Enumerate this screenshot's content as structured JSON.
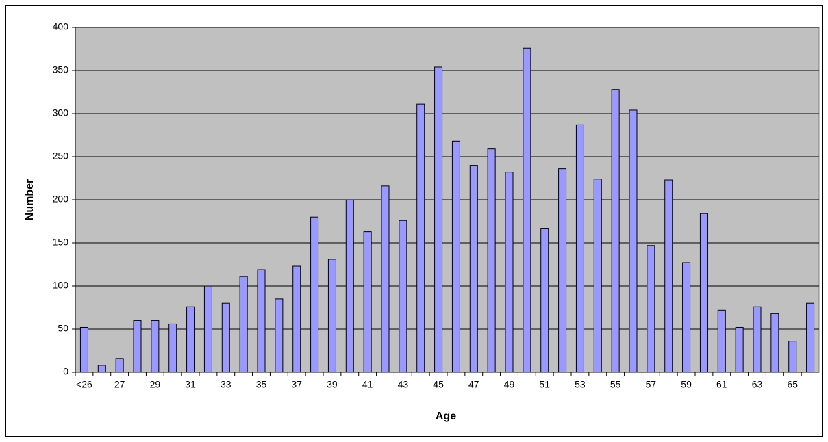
{
  "chart_data": {
    "type": "bar",
    "x_label": "Age",
    "y_label": "Number",
    "categories": [
      "<26",
      null,
      "27",
      null,
      "29",
      null,
      "31",
      null,
      "33",
      null,
      "35",
      null,
      "37",
      null,
      "39",
      null,
      "41",
      null,
      "43",
      null,
      "45",
      null,
      "47",
      null,
      "49",
      null,
      "51",
      null,
      "53",
      null,
      "55",
      null,
      "57",
      null,
      "59",
      null,
      "61",
      null,
      "63",
      null,
      "65",
      null
    ],
    "values": [
      52,
      8,
      16,
      60,
      60,
      56,
      76,
      100,
      80,
      111,
      119,
      85,
      123,
      180,
      131,
      200,
      163,
      216,
      176,
      311,
      354,
      268,
      240,
      259,
      232,
      376,
      167,
      236,
      287,
      224,
      328,
      304,
      147,
      223,
      127,
      184,
      72,
      52,
      76,
      68,
      36,
      80
    ],
    "color": "#9999ff",
    "ylim": [
      0,
      400
    ],
    "yticks": [
      0,
      50,
      100,
      150,
      200,
      250,
      300,
      350,
      400
    ],
    "grid": true
  }
}
